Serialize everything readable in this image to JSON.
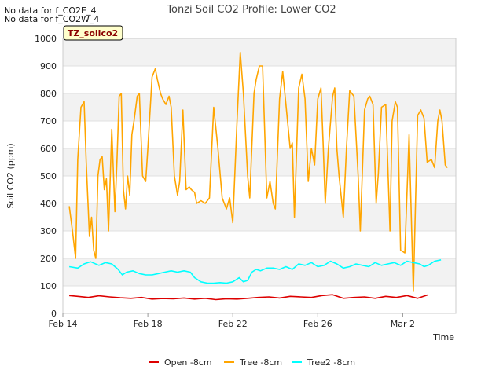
{
  "notes": [
    "No data for f_CO2E_4",
    "No data for f_CO2W_4"
  ],
  "tag_label": "TZ_soilco2",
  "chart_data": {
    "type": "line",
    "title": "Tonzi Soil CO2 Profile: Lower CO2",
    "xlabel": "Time",
    "ylabel": "Soil CO2 (ppm)",
    "xlim": [
      0,
      18.5
    ],
    "ylim": [
      0,
      1000
    ],
    "yticks": [
      0,
      100,
      200,
      300,
      400,
      500,
      600,
      700,
      800,
      900,
      1000
    ],
    "xticks": [
      {
        "value": 0,
        "label": "Feb 14"
      },
      {
        "value": 4,
        "label": "Feb 18"
      },
      {
        "value": 8,
        "label": "Feb 22"
      },
      {
        "value": 12,
        "label": "Feb 26"
      },
      {
        "value": 16,
        "label": "Mar 2"
      }
    ],
    "grid": true,
    "legend": "bottom",
    "series": [
      {
        "name": "Open -8cm",
        "color": "#dd0000",
        "x": [
          0.3,
          0.7,
          1.2,
          1.7,
          2.2,
          2.7,
          3.2,
          3.7,
          4.2,
          4.7,
          5.2,
          5.7,
          6.2,
          6.7,
          7.2,
          7.7,
          8.2,
          8.7,
          9.2,
          9.7,
          10.2,
          10.7,
          11.2,
          11.7,
          12.2,
          12.7,
          13.2,
          13.7,
          14.2,
          14.7,
          15.2,
          15.7,
          16.2,
          16.7,
          17.2
        ],
        "values": [
          65,
          62,
          58,
          64,
          60,
          57,
          55,
          58,
          52,
          54,
          53,
          56,
          52,
          55,
          50,
          53,
          52,
          55,
          58,
          60,
          56,
          62,
          60,
          58,
          65,
          68,
          55,
          58,
          60,
          55,
          62,
          58,
          65,
          55,
          68
        ]
      },
      {
        "name": "Tree -8cm",
        "color": "#ffa500",
        "x": [
          0.3,
          0.45,
          0.6,
          0.7,
          0.85,
          1.0,
          1.1,
          1.25,
          1.35,
          1.45,
          1.55,
          1.65,
          1.75,
          1.85,
          1.95,
          2.05,
          2.15,
          2.3,
          2.45,
          2.55,
          2.65,
          2.75,
          2.85,
          2.95,
          3.05,
          3.15,
          3.25,
          3.35,
          3.5,
          3.6,
          3.75,
          3.9,
          4.0,
          4.2,
          4.35,
          4.45,
          4.6,
          4.7,
          4.85,
          5.0,
          5.1,
          5.25,
          5.4,
          5.5,
          5.65,
          5.8,
          5.95,
          6.05,
          6.2,
          6.3,
          6.5,
          6.7,
          6.9,
          7.1,
          7.3,
          7.5,
          7.7,
          7.85,
          8.0,
          8.2,
          8.35,
          8.5,
          8.7,
          8.8,
          9.0,
          9.1,
          9.25,
          9.4,
          9.6,
          9.75,
          9.9,
          10.0,
          10.2,
          10.35,
          10.5,
          10.7,
          10.8,
          10.9,
          11.1,
          11.25,
          11.4,
          11.55,
          11.7,
          11.85,
          12.0,
          12.15,
          12.25,
          12.35,
          12.5,
          12.7,
          12.8,
          12.9,
          13.0,
          13.2,
          13.35,
          13.5,
          13.7,
          13.9,
          14.0,
          14.2,
          14.35,
          14.45,
          14.6,
          14.75,
          14.85,
          15.0,
          15.2,
          15.4,
          15.5,
          15.65,
          15.75,
          15.9,
          16.1,
          16.3,
          16.5,
          16.7,
          16.85,
          17.0,
          17.15,
          17.35,
          17.5,
          17.65,
          17.75,
          17.85,
          18.0,
          18.1
        ],
        "values": [
          390,
          300,
          200,
          560,
          750,
          770,
          550,
          280,
          350,
          230,
          200,
          500,
          560,
          570,
          450,
          490,
          300,
          670,
          370,
          560,
          790,
          800,
          450,
          380,
          500,
          430,
          650,
          700,
          790,
          800,
          500,
          480,
          600,
          860,
          890,
          850,
          800,
          780,
          760,
          790,
          750,
          500,
          430,
          480,
          740,
          450,
          460,
          450,
          440,
          400,
          410,
          400,
          420,
          750,
          600,
          420,
          380,
          420,
          330,
          700,
          950,
          800,
          500,
          420,
          800,
          850,
          900,
          900,
          420,
          480,
          400,
          380,
          780,
          880,
          760,
          600,
          620,
          350,
          820,
          870,
          780,
          480,
          600,
          540,
          780,
          820,
          620,
          400,
          600,
          790,
          820,
          600,
          500,
          350,
          600,
          810,
          790,
          500,
          300,
          740,
          780,
          790,
          760,
          400,
          510,
          750,
          760,
          300,
          700,
          770,
          750,
          230,
          220,
          650,
          80,
          720,
          740,
          710,
          550,
          560,
          530,
          700,
          740,
          700,
          540,
          530
        ],
        "note": "x,y pairs sampled from the trace"
      },
      {
        "name": "Tree2 -8cm",
        "color": "#00ffff",
        "x": [
          0.3,
          0.7,
          1.0,
          1.3,
          1.7,
          2.0,
          2.3,
          2.6,
          2.8,
          3.0,
          3.3,
          3.6,
          3.9,
          4.2,
          4.5,
          4.8,
          5.1,
          5.4,
          5.7,
          6.0,
          6.2,
          6.5,
          6.8,
          7.1,
          7.4,
          7.7,
          8.0,
          8.3,
          8.5,
          8.7,
          8.9,
          9.1,
          9.3,
          9.6,
          9.9,
          10.2,
          10.5,
          10.8,
          11.1,
          11.4,
          11.7,
          12.0,
          12.3,
          12.6,
          12.9,
          13.2,
          13.5,
          13.8,
          14.1,
          14.4,
          14.7,
          15.0,
          15.3,
          15.6,
          15.9,
          16.2,
          16.5,
          16.8,
          17.0,
          17.2,
          17.5,
          17.8
        ],
        "values": [
          170,
          165,
          180,
          188,
          175,
          185,
          180,
          160,
          140,
          150,
          155,
          145,
          140,
          140,
          145,
          150,
          155,
          150,
          155,
          150,
          130,
          115,
          110,
          110,
          112,
          110,
          115,
          130,
          115,
          120,
          150,
          160,
          155,
          165,
          165,
          160,
          170,
          160,
          180,
          175,
          185,
          170,
          175,
          190,
          180,
          165,
          170,
          180,
          175,
          170,
          185,
          175,
          180,
          185,
          175,
          190,
          185,
          180,
          170,
          175,
          190,
          195
        ]
      }
    ]
  }
}
